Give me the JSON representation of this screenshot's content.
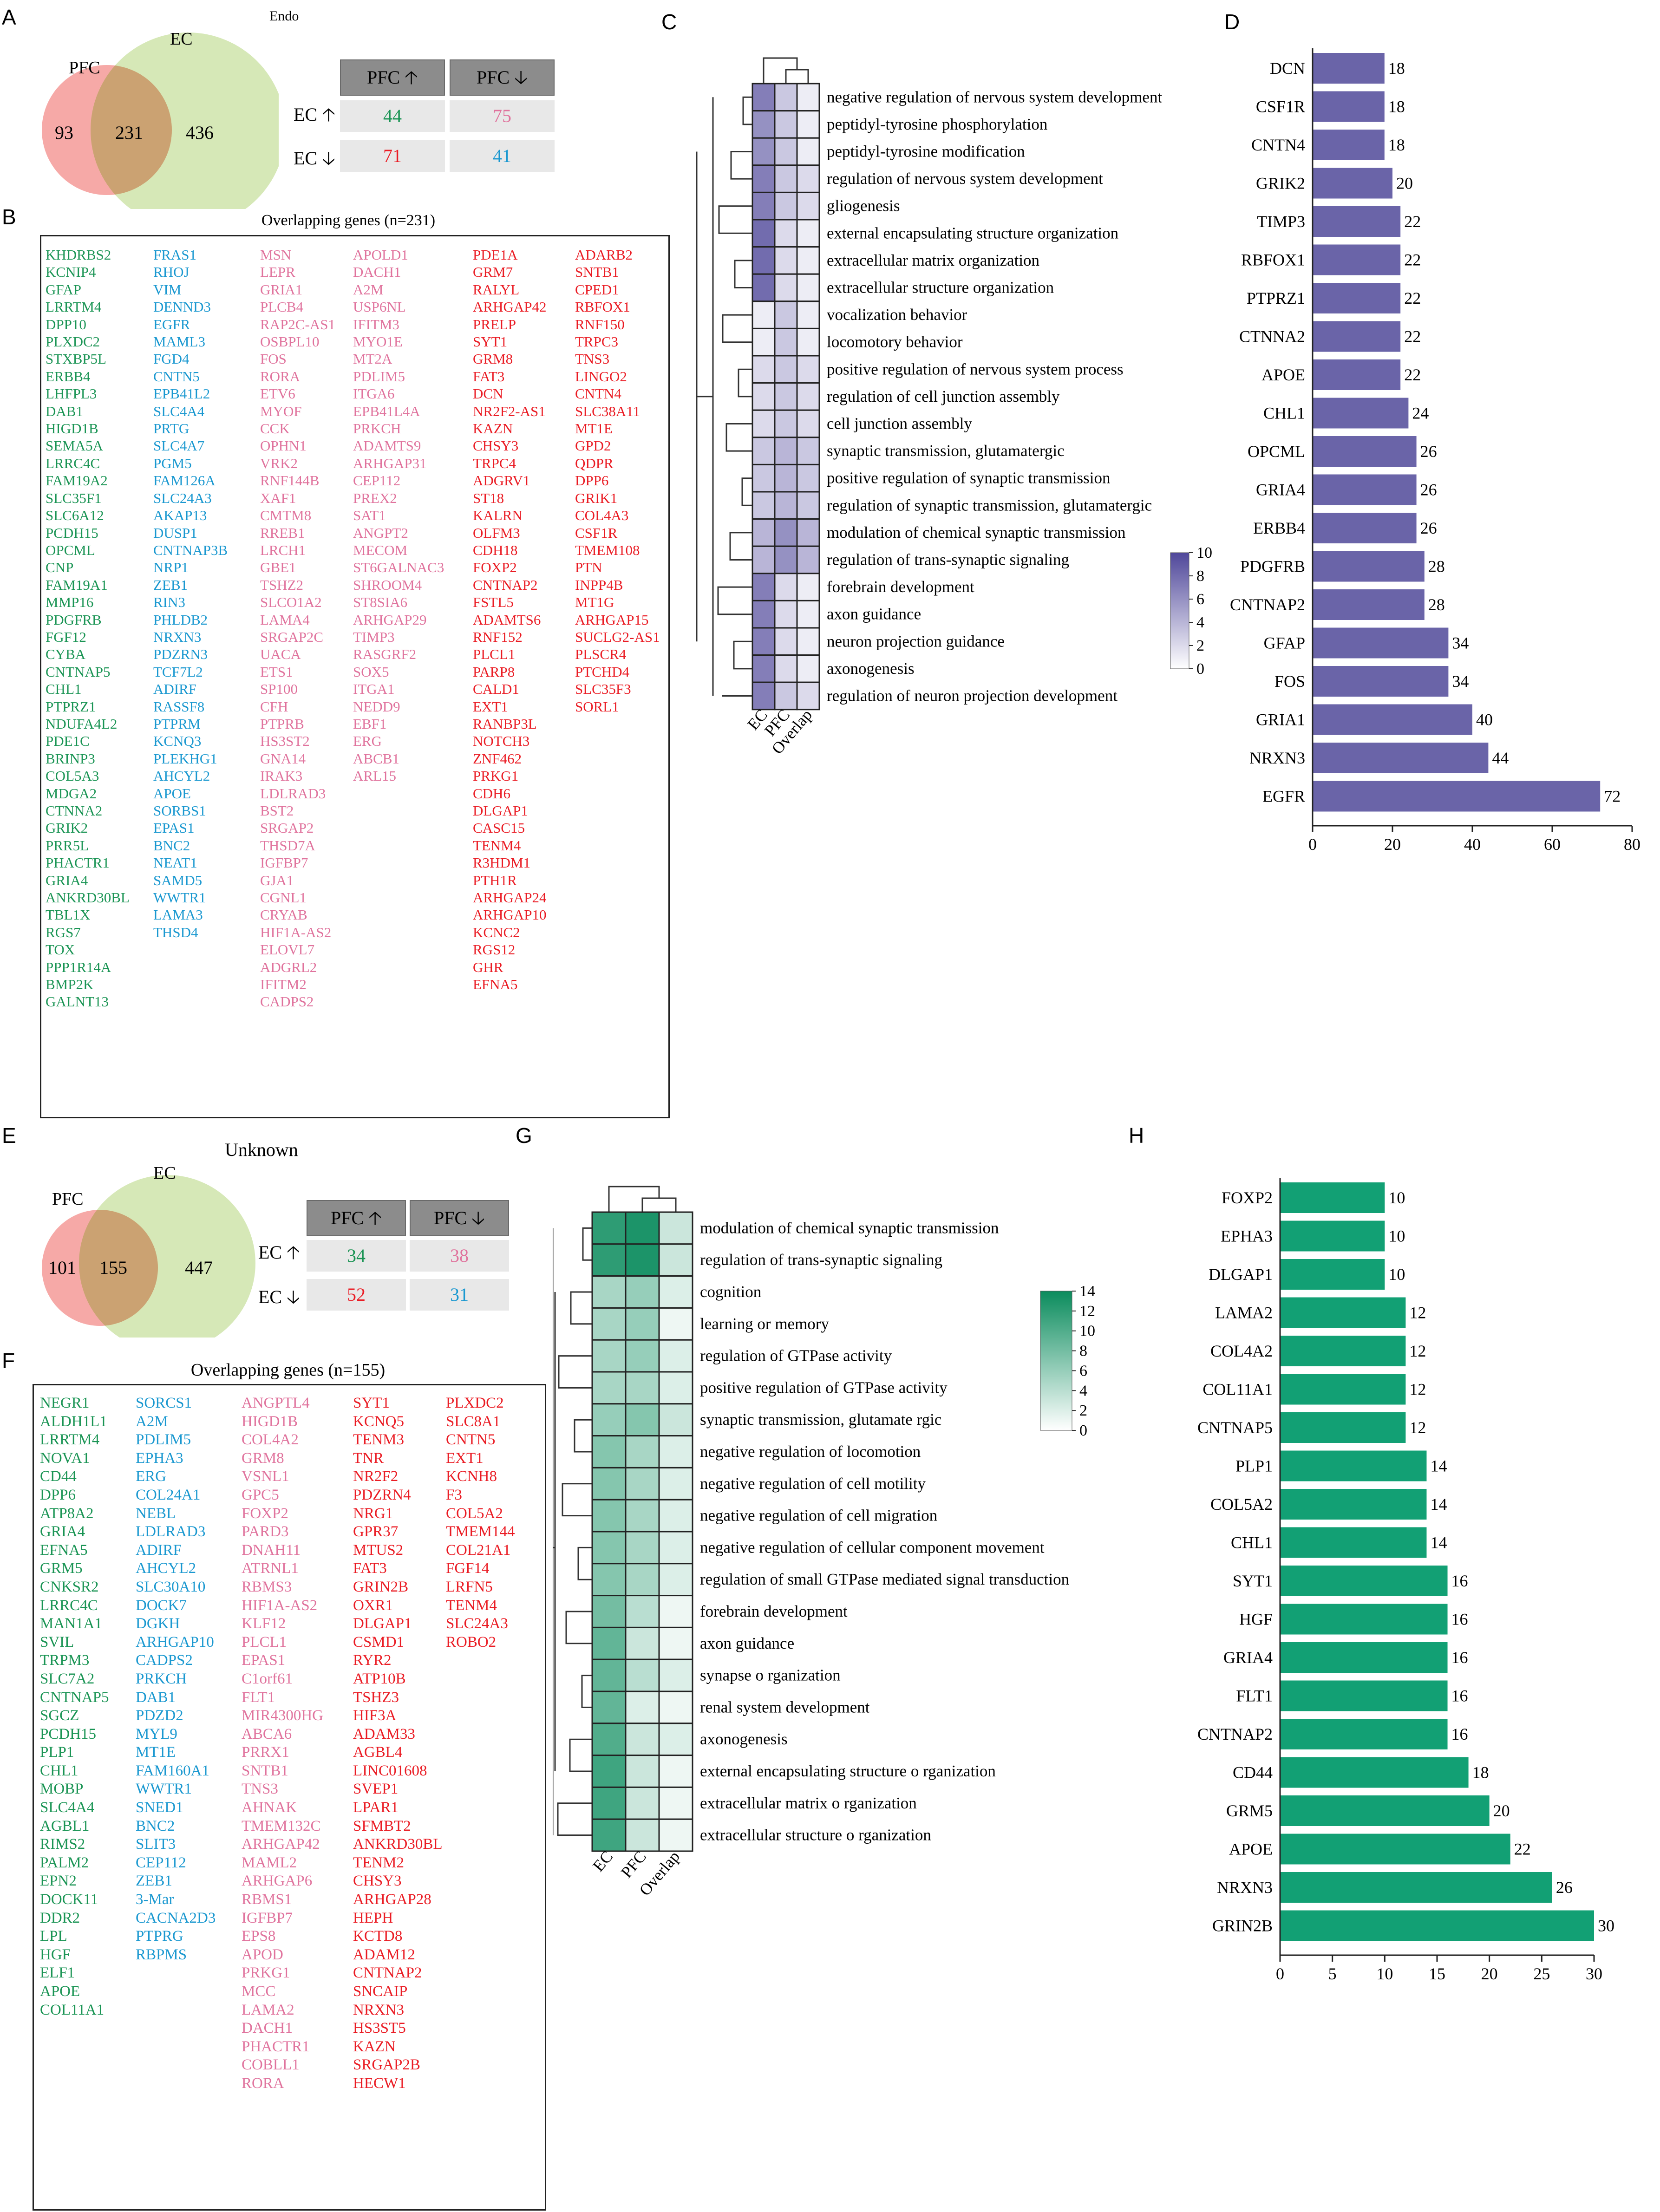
{
  "panels": {
    "A": "A",
    "B": "B",
    "C": "C",
    "D": "D",
    "E": "E",
    "F": "F",
    "G": "G",
    "H": "H"
  },
  "top": {
    "celltype": "Endo",
    "venn": {
      "left_label": "PFC",
      "right_label": "EC",
      "left_only": "93",
      "overlap": "231",
      "right_only": "436"
    },
    "table": {
      "col1": "PFC",
      "col2": "PFC",
      "row1": "EC",
      "row2": "EC",
      "v11": "44",
      "v12": "75",
      "v21": "71",
      "v22": "41"
    },
    "genes_title": "Overlapping genes (n=231)",
    "genes": {
      "green": [
        "KHDRBS2",
        "KCNIP4",
        "GFAP",
        "LRRTM4",
        "DPP10",
        "PLXDC2",
        "STXBP5L",
        "ERBB4",
        "LHFPL3",
        "DAB1",
        "HIGD1B",
        "SEMA5A",
        "LRRC4C",
        "FAM19A2",
        "SLC35F1",
        "SLC6A12",
        "PCDH15",
        "OPCML",
        "CNP",
        "FAM19A1",
        "MMP16",
        "PDGFRB",
        "FGF12",
        "CYBA",
        "CNTNAP5",
        "CHL1",
        "PTPRZ1",
        "NDUFA4L2",
        "PDE1C",
        "BRINP3",
        "COL5A3",
        "MDGA2",
        "CTNNA2",
        "GRIK2",
        "PRR5L",
        "PHACTR1",
        "GRIA4",
        "ANKRD30BL",
        "TBL1X",
        "RGS7",
        "TOX",
        "PPP1R14A",
        "BMP2K",
        "GALNT13"
      ],
      "blue": [
        "FRAS1",
        "RHOJ",
        "VIM",
        "DENND3",
        "EGFR",
        "MAML3",
        "FGD4",
        "CNTN5",
        "EPB41L2",
        "SLC4A4",
        "PRTG",
        "SLC4A7",
        "PGM5",
        "FAM126A",
        "SLC24A3",
        "AKAP13",
        "DUSP1",
        "CNTNAP3B",
        "NRP1",
        "ZEB1",
        "RIN3",
        "PHLDB2",
        "NRXN3",
        "PDZRN3",
        "TCF7L2",
        "ADIRF",
        "RASSF8",
        "PTPRM",
        "KCNQ3",
        "PLEKHG1",
        "AHCYL2",
        "APOE",
        "SORBS1",
        "EPAS1",
        "BNC2",
        "NEAT1",
        "SAMD5",
        "WWTR1",
        "LAMA3",
        "THSD4"
      ],
      "pink1": [
        "MSN",
        "LEPR",
        "GRIA1",
        "PLCB4",
        "RAP2C-AS1",
        "OSBPL10",
        "FOS",
        "RORA",
        "ETV6",
        "MYOF",
        "CCK",
        "OPHN1",
        "VRK2",
        "RNF144B",
        "XAF1",
        "CMTM8",
        "RREB1",
        "LRCH1",
        "GBE1",
        "TSHZ2",
        "SLCO1A2",
        "LAMA4",
        "SRGAP2C",
        "UACA",
        "ETS1",
        "SP100",
        "CFH",
        "PTPRB",
        "HS3ST2",
        "GNA14",
        "IRAK3",
        "LDLRAD3",
        "BST2",
        "SRGAP2",
        "THSD7A",
        "IGFBP7",
        "GJA1",
        "CGNL1",
        "CRYAB",
        "HIF1A-AS2",
        "ELOVL7",
        "ADGRL2",
        "IFITM2",
        "CADPS2"
      ],
      "pink2": [
        "APOLD1",
        "DACH1",
        "A2M",
        "USP6NL",
        "IFITM3",
        "MYO1E",
        "MT2A",
        "PDLIM5",
        "ITGA6",
        "EPB41L4A",
        "PRKCH",
        "ADAMTS9",
        "ARHGAP31",
        "CEP112",
        "PREX2",
        "SAT1",
        "ANGPT2",
        "MECOM",
        "ST6GALNAC3",
        "SHROOM4",
        "ST8SIA6",
        "ARHGAP29",
        "TIMP3",
        "RASGRF2",
        "SOX5",
        "ITGA1",
        "NEDD9",
        "EBF1",
        "ERG",
        "ABCB1",
        "ARL15"
      ],
      "red1": [
        "PDE1A",
        "GRM7",
        "RALYL",
        "ARHGAP42",
        "PRELP",
        "SYT1",
        "GRM8",
        "FAT3",
        "DCN",
        "NR2F2-AS1",
        "KAZN",
        "CHSY3",
        "TRPC4",
        "ADGRV1",
        "ST18",
        "KALRN",
        "OLFM3",
        "CDH18",
        "FOXP2",
        "CNTNAP2",
        "FSTL5",
        "ADAMTS6",
        "RNF152",
        "PLCL1",
        "PARP8",
        "CALD1",
        "EXT1",
        "RANBP3L",
        "NOTCH3",
        "ZNF462",
        "PRKG1",
        "CDH6",
        "DLGAP1",
        "CASC15",
        "TENM4",
        "R3HDM1",
        "PTH1R",
        "ARHGAP24",
        "ARHGAP10",
        "KCNC2",
        "RGS12",
        "GHR",
        "EFNA5"
      ],
      "red2": [
        "ADARB2",
        "SNTB1",
        "CPED1",
        "RBFOX1",
        "RNF150",
        "TRPC3",
        "TNS3",
        "LINGO2",
        "CNTN4",
        "SLC38A11",
        "MT1E",
        "GPD2",
        "QDPR",
        "DPP6",
        "GRIK1",
        "COL4A3",
        "CSF1R",
        "TMEM108",
        "PTN",
        "INPP4B",
        "MT1G",
        "ARHGAP15",
        "SUCLG2-AS1",
        "PLSCR4",
        "PTCHD4",
        "SLC35F3",
        "SORL1"
      ]
    },
    "heatmap": {
      "terms": [
        "negative regulation of nervous system development",
        "peptidyl-tyrosine phosphorylation",
        "peptidyl-tyrosine modification",
        "regulation of nervous system development",
        "gliogenesis",
        "external encapsulating structure organization",
        "extracellular matrix organization",
        "extracellular structure organization",
        "vocalization behavior",
        "locomotory behavior",
        "positive regulation of nervous system process",
        "regulation of cell junction assembly",
        "cell junction assembly",
        "synaptic transmission, glutamatergic",
        "positive regulation of synaptic transmission",
        "regulation of synaptic transmission, glutamatergic",
        "modulation of chemical synaptic transmission",
        "regulation of trans-synaptic signaling",
        "forebrain development",
        "axon guidance",
        "neuron projection guidance",
        "axonogenesis",
        "regulation of neuron projection development"
      ],
      "columns": [
        "EC",
        "PFC",
        "Overlap"
      ],
      "values": [
        [
          7,
          3,
          1
        ],
        [
          6,
          3,
          1
        ],
        [
          6,
          3,
          1
        ],
        [
          7,
          3,
          2
        ],
        [
          7,
          3,
          2
        ],
        [
          8,
          2,
          1
        ],
        [
          8,
          2,
          1
        ],
        [
          8,
          2,
          1
        ],
        [
          1,
          3,
          1
        ],
        [
          1,
          3,
          1
        ],
        [
          2,
          3,
          2
        ],
        [
          2,
          3,
          2
        ],
        [
          2,
          3,
          2
        ],
        [
          3,
          4,
          3
        ],
        [
          3,
          4,
          3
        ],
        [
          3,
          4,
          3
        ],
        [
          4,
          6,
          4
        ],
        [
          4,
          6,
          4
        ],
        [
          7,
          2,
          1
        ],
        [
          7,
          2,
          1
        ],
        [
          7,
          2,
          1
        ],
        [
          7,
          2,
          1
        ],
        [
          7,
          3,
          2
        ]
      ],
      "legend_ticks": [
        "10",
        "8",
        "6",
        "4",
        "2",
        "0"
      ]
    },
    "bars": {
      "color": "#6a64a8",
      "genes": [
        "DCN",
        "CSF1R",
        "CNTN4",
        "GRIK2",
        "TIMP3",
        "RBFOX1",
        "PTPRZ1",
        "CTNNA2",
        "APOE",
        "CHL1",
        "OPCML",
        "GRIA4",
        "ERBB4",
        "PDGFRB",
        "CNTNAP2",
        "GFAP",
        "FOS",
        "GRIA1",
        "NRXN3",
        "EGFR"
      ],
      "values": [
        18,
        18,
        18,
        20,
        22,
        22,
        22,
        22,
        22,
        24,
        26,
        26,
        26,
        28,
        28,
        34,
        34,
        40,
        44,
        72
      ],
      "xticks": [
        "0",
        "20",
        "40",
        "60",
        "80"
      ],
      "xmax": 80
    }
  },
  "bottom": {
    "celltype": "Unknown",
    "venn": {
      "left_label": "PFC",
      "right_label": "EC",
      "left_only": "101",
      "overlap": "155",
      "right_only": "447"
    },
    "table": {
      "col1": "PFC",
      "col2": "PFC",
      "row1": "EC",
      "row2": "EC",
      "v11": "34",
      "v12": "38",
      "v21": "52",
      "v22": "31"
    },
    "genes_title": "Overlapping genes (n=155)",
    "genes": {
      "green": [
        "NEGR1",
        "ALDH1L1",
        "LRRTM4",
        "NOVA1",
        "CD44",
        "DPP6",
        "ATP8A2",
        "GRIA4",
        "EFNA5",
        "GRM5",
        "CNKSR2",
        "LRRC4C",
        "MAN1A1",
        "SVIL",
        "TRPM3",
        "SLC7A2",
        "CNTNAP5",
        "SGCZ",
        "PCDH15",
        "PLP1",
        "CHL1",
        "MOBP",
        "SLC4A4",
        "AGBL1",
        "RIMS2",
        "PALM2",
        "EPN2",
        "DOCK11",
        "DDR2",
        "LPL",
        "HGF",
        "ELF1",
        "APOE",
        "COL11A1"
      ],
      "blue": [
        "SORCS1",
        "A2M",
        "PDLIM5",
        "EPHA3",
        "ERG",
        "COL24A1",
        "NEBL",
        "LDLRAD3",
        "ADIRF",
        "AHCYL2",
        "SLC30A10",
        "DOCK7",
        "DGKH",
        "ARHGAP10",
        "CADPS2",
        "PRKCH",
        "DAB1",
        "PDZD2",
        "MYL9",
        "MT1E",
        "FAM160A1",
        "WWTR1",
        "SNED1",
        "BNC2",
        "SLIT3",
        "CEP112",
        "ZEB1",
        "3-Mar",
        "CACNA2D3",
        "PTPRG",
        "RBPMS"
      ],
      "pink": [
        "ANGPTL4",
        "HIGD1B",
        "COL4A2",
        "GRM8",
        "VSNL1",
        "GPC5",
        "FOXP2",
        "PARD3",
        "DNAH11",
        "ATRNL1",
        "RBMS3",
        "HIF1A-AS2",
        "KLF12",
        "PLCL1",
        "EPAS1",
        "C1orf61",
        "FLT1",
        "MIR4300HG",
        "ABCA6",
        "PRRX1",
        "SNTB1",
        "TNS3",
        "AHNAK",
        "TMEM132C",
        "ARHGAP42",
        "MAML2",
        "ARHGAP6",
        "RBMS1",
        "IGFBP7",
        "EPS8",
        "APOD",
        "PRKG1",
        "MCC",
        "LAMA2",
        "DACH1",
        "PHACTR1",
        "COBLL1",
        "RORA"
      ],
      "red1": [
        "SYT1",
        "KCNQ5",
        "TENM3",
        "TNR",
        "NR2F2",
        "PDZRN4",
        "NRG1",
        "GPR37",
        "MTUS2",
        "FAT3",
        "GRIN2B",
        "OXR1",
        "DLGAP1",
        "CSMD1",
        "RYR2",
        "ATP10B",
        "TSHZ3",
        "HIF3A",
        "ADAM33",
        "AGBL4",
        "LINC01608",
        "SVEP1",
        "LPAR1",
        "SFMBT2",
        "ANKRD30BL",
        "TENM2",
        "CHSY3",
        "ARHGAP28",
        "HEPH",
        "KCTD8",
        "ADAM12",
        "CNTNAP2",
        "SNCAIP",
        "NRXN3",
        "HS3ST5",
        "KAZN",
        "SRGAP2B",
        "HECW1"
      ],
      "red2": [
        "PLXDC2",
        "SLC8A1",
        "CNTN5",
        "EXT1",
        "KCNH8",
        "F3",
        "COL5A2",
        "TMEM144",
        "COL21A1",
        "FGF14",
        "LRFN5",
        "TENM4",
        "SLC24A3",
        "ROBO2"
      ]
    },
    "heatmap": {
      "terms": [
        "modulation of chemical synaptic transmission",
        "regulation of trans-synaptic signaling",
        "cognition",
        "learning or memory",
        "regulation of GTPase activity",
        "positive regulation of GTPase activity",
        "synaptic transmission, glutamate rgic",
        "negative regulation of locomotion",
        "negative regulation of cell motility",
        "negative regulation of cell migration",
        "negative regulation of cellular component movement",
        "regulation of small GTPase mediated signal transduction",
        "forebrain development",
        "axon guidance",
        "synapse o rganization",
        "renal system development",
        "axonogenesis",
        "external encapsulating structure o rganization",
        "extracellular matrix o rganization",
        "extracellular structure o rganization"
      ],
      "columns": [
        "EC",
        "PFC",
        "Overlap"
      ],
      "values": [
        [
          12,
          13,
          3
        ],
        [
          12,
          13,
          3
        ],
        [
          5,
          6,
          2
        ],
        [
          5,
          6,
          1
        ],
        [
          5,
          6,
          2
        ],
        [
          5,
          5,
          2
        ],
        [
          6,
          7,
          3
        ],
        [
          7,
          5,
          2
        ],
        [
          7,
          5,
          2
        ],
        [
          7,
          5,
          2
        ],
        [
          7,
          5,
          2
        ],
        [
          7,
          5,
          2
        ],
        [
          8,
          4,
          1
        ],
        [
          9,
          3,
          1
        ],
        [
          9,
          4,
          2
        ],
        [
          9,
          2,
          1
        ],
        [
          10,
          3,
          2
        ],
        [
          11,
          3,
          1
        ],
        [
          11,
          3,
          1
        ],
        [
          11,
          3,
          1
        ]
      ],
      "legend_ticks": [
        "14",
        "12",
        "10",
        "8",
        "6",
        "4",
        "2",
        "0"
      ]
    },
    "bars": {
      "color": "#12a074",
      "genes": [
        "FOXP2",
        "EPHA3",
        "DLGAP1",
        "LAMA2",
        "COL4A2",
        "COL11A1",
        "CNTNAP5",
        "PLP1",
        "COL5A2",
        "CHL1",
        "SYT1",
        "HGF",
        "GRIA4",
        "FLT1",
        "CNTNAP2",
        "CD44",
        "GRM5",
        "APOE",
        "NRXN3",
        "GRIN2B"
      ],
      "values": [
        10,
        10,
        10,
        12,
        12,
        12,
        12,
        14,
        14,
        14,
        16,
        16,
        16,
        16,
        16,
        18,
        20,
        22,
        26,
        30
      ],
      "xticks": [
        "0",
        "5",
        "10",
        "15",
        "20",
        "25",
        "30"
      ],
      "xmax": 30
    }
  }
}
